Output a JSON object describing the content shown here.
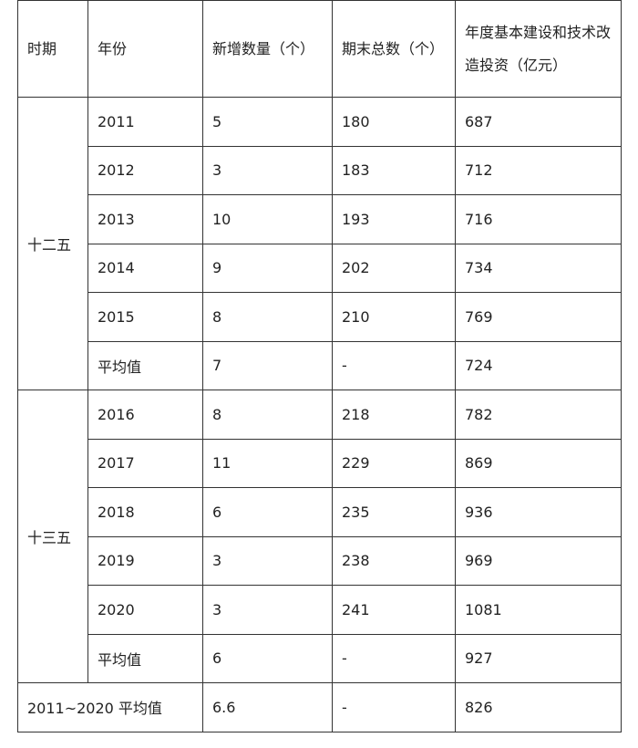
{
  "table": {
    "header": [
      "时期",
      "年份",
      "新增数量（个）",
      "期末总数（个）",
      "年度基本建设和技术改造投资（亿元）"
    ],
    "groups": [
      {
        "period": "十二五",
        "rows": [
          [
            "2011",
            "5",
            "180",
            "687"
          ],
          [
            "2012",
            "3",
            "183",
            "712"
          ],
          [
            "2013",
            "10",
            "193",
            "716"
          ],
          [
            "2014",
            "9",
            "202",
            "734"
          ],
          [
            "2015",
            "8",
            "210",
            "769"
          ],
          [
            "平均值",
            "7",
            "-",
            "724"
          ]
        ]
      },
      {
        "period": "十三五",
        "rows": [
          [
            "2016",
            "8",
            "218",
            "782"
          ],
          [
            "2017",
            "11",
            "229",
            "869"
          ],
          [
            "2018",
            "6",
            "235",
            "936"
          ],
          [
            "2019",
            "3",
            "238",
            "969"
          ],
          [
            "2020",
            "3",
            "241",
            "1081"
          ],
          [
            "平均值",
            "6",
            "-",
            "927"
          ]
        ]
      }
    ],
    "footer": [
      "2011~2020 平均值",
      "6.6",
      "-",
      "826"
    ]
  }
}
